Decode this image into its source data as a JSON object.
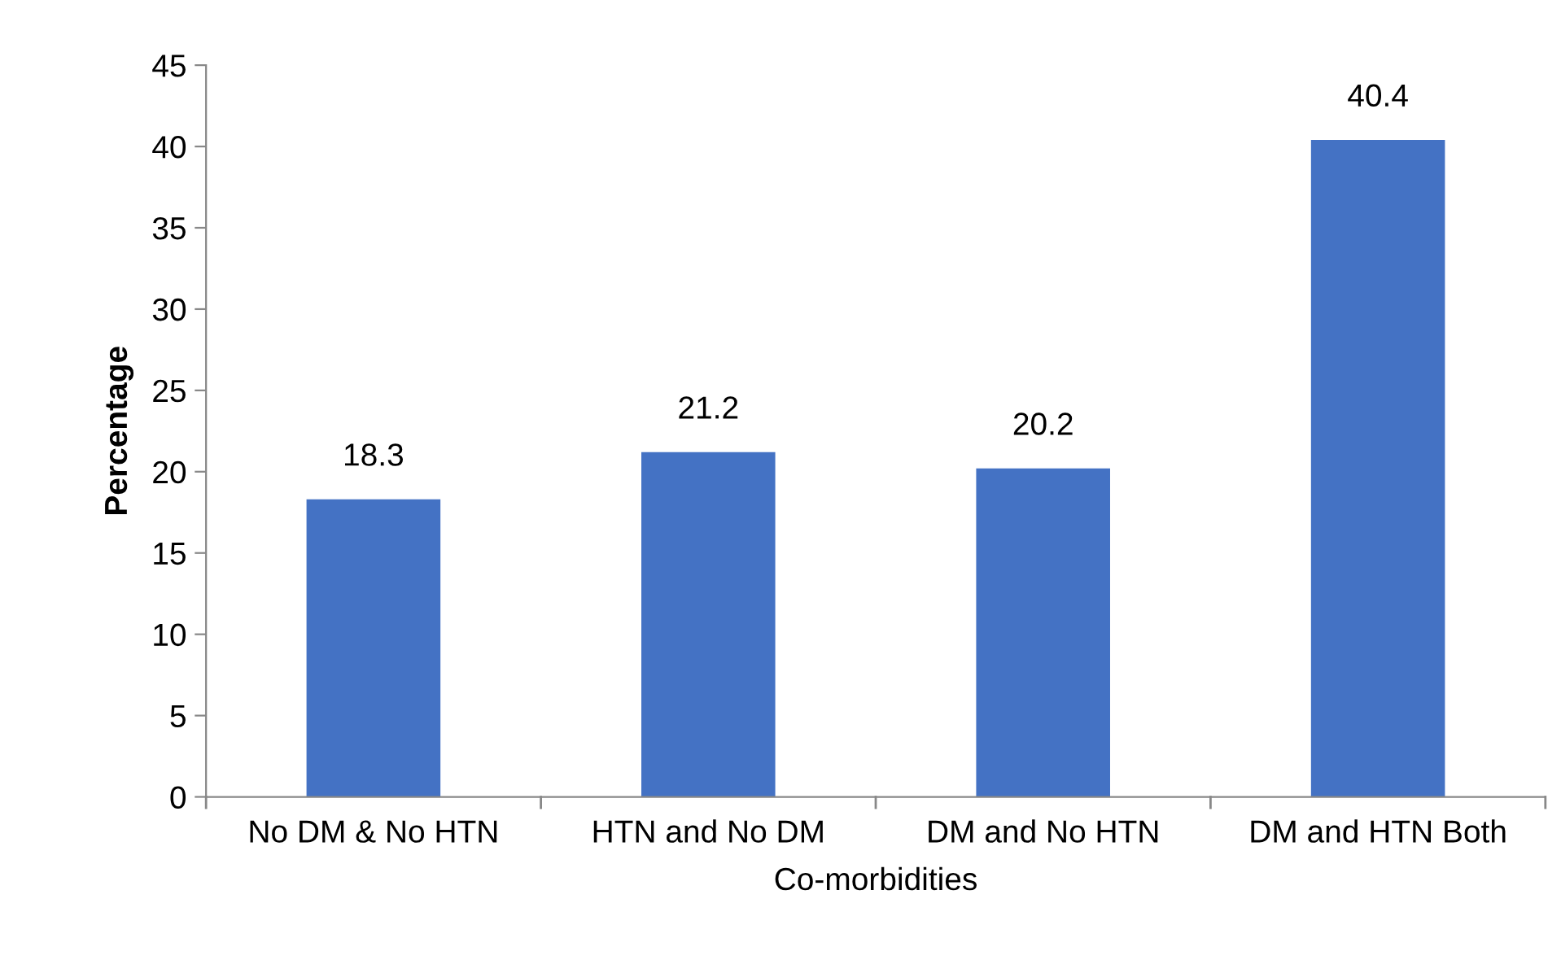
{
  "chart_data": {
    "type": "bar",
    "xlabel": "Co-morbidities",
    "ylabel": "Percentage",
    "categories": [
      "No DM & No HTN",
      "HTN and No DM",
      "DM and No HTN",
      "DM and HTN Both"
    ],
    "values": [
      18.3,
      21.2,
      20.2,
      40.4
    ],
    "color": "#4472c4",
    "ylim": [
      0,
      45
    ],
    "yticks": [
      0,
      5,
      10,
      15,
      20,
      25,
      30,
      35,
      40,
      45
    ],
    "grid": false,
    "data_labels": true
  }
}
